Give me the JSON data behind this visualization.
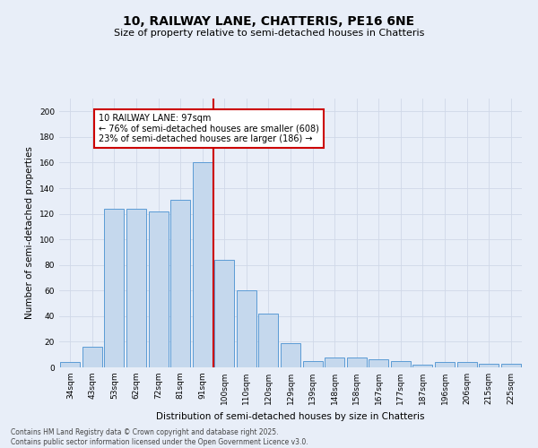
{
  "title": "10, RAILWAY LANE, CHATTERIS, PE16 6NE",
  "subtitle": "Size of property relative to semi-detached houses in Chatteris",
  "xlabel": "Distribution of semi-detached houses by size in Chatteris",
  "ylabel": "Number of semi-detached properties",
  "categories": [
    "34sqm",
    "43sqm",
    "53sqm",
    "62sqm",
    "72sqm",
    "81sqm",
    "91sqm",
    "100sqm",
    "110sqm",
    "120sqm",
    "129sqm",
    "139sqm",
    "148sqm",
    "158sqm",
    "167sqm",
    "177sqm",
    "187sqm",
    "196sqm",
    "206sqm",
    "215sqm",
    "225sqm"
  ],
  "values": [
    4,
    16,
    124,
    124,
    122,
    131,
    160,
    84,
    60,
    42,
    19,
    5,
    8,
    8,
    6,
    5,
    2,
    4,
    4,
    3,
    3
  ],
  "bar_color": "#c5d8ed",
  "bar_edge_color": "#5b9bd5",
  "vline_x_index": 7,
  "annotation_text": "10 RAILWAY LANE: 97sqm\n← 76% of semi-detached houses are smaller (608)\n23% of semi-detached houses are larger (186) →",
  "annotation_box_color": "#ffffff",
  "annotation_box_edge": "#cc0000",
  "vline_color": "#cc0000",
  "ylim": [
    0,
    210
  ],
  "yticks": [
    0,
    20,
    40,
    60,
    80,
    100,
    120,
    140,
    160,
    180,
    200
  ],
  "grid_color": "#d0d8e8",
  "background_color": "#e8eef8",
  "footer_line1": "Contains HM Land Registry data © Crown copyright and database right 2025.",
  "footer_line2": "Contains public sector information licensed under the Open Government Licence v3.0.",
  "title_fontsize": 10,
  "subtitle_fontsize": 8,
  "axis_label_fontsize": 7.5,
  "tick_fontsize": 6.5,
  "annot_fontsize": 7,
  "footer_fontsize": 5.5
}
